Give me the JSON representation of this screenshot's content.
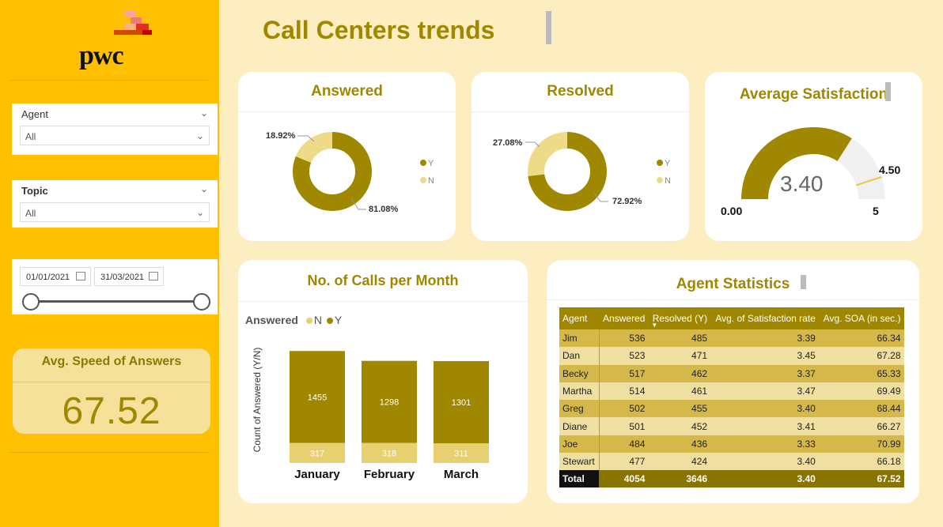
{
  "sidebar": {
    "logo_text": "pwc",
    "agent_slicer": {
      "label": "Agent",
      "value": "All"
    },
    "topic_slicer": {
      "label": "Topic",
      "value": "All"
    },
    "date_range": {
      "start": "01/01/2021",
      "end": "31/03/2021"
    },
    "kpi": {
      "label": "Avg. Speed of Answers",
      "value": "67.52"
    }
  },
  "header": {
    "title": "Call Centers trends"
  },
  "answered": {
    "title": "Answered",
    "chart_data": {
      "type": "pie",
      "categories": [
        "Y",
        "N"
      ],
      "values": [
        81.08,
        18.92
      ],
      "labels": [
        "81.08%",
        "18.92%"
      ],
      "legend": [
        "Y",
        "N"
      ]
    }
  },
  "resolved": {
    "title": "Resolved",
    "chart_data": {
      "type": "pie",
      "categories": [
        "Y",
        "N"
      ],
      "values": [
        72.92,
        27.08
      ],
      "labels": [
        "72.92%",
        "27.08%"
      ],
      "legend": [
        "Y",
        "N"
      ]
    }
  },
  "satisfaction": {
    "title": "Average Satisfaction",
    "value": "3.40",
    "min": "0.00",
    "max": "5",
    "target": "4.50",
    "gauge": {
      "value": 3.4,
      "min": 0,
      "max": 5,
      "target": 4.5
    }
  },
  "calls": {
    "title": "No. of Calls per Month",
    "legend_title": "Answered",
    "legend": [
      "N",
      "Y"
    ],
    "ylabel": "Count of Answered (Y/N)",
    "chart_data": {
      "type": "bar",
      "categories": [
        "January",
        "February",
        "March"
      ],
      "series": [
        {
          "name": "N",
          "values": [
            317,
            318,
            311
          ]
        },
        {
          "name": "Y",
          "values": [
            1455,
            1298,
            1301
          ]
        }
      ]
    }
  },
  "agent_stats": {
    "title": "Agent Statistics",
    "columns": [
      "Agent",
      "Answered",
      "Resolved (Y)",
      "Avg. of Satisfaction rate",
      "Avg. SOA (in sec.)"
    ],
    "rows": [
      [
        "Jim",
        "536",
        "485",
        "3.39",
        "66.34"
      ],
      [
        "Dan",
        "523",
        "471",
        "3.45",
        "67.28"
      ],
      [
        "Becky",
        "517",
        "462",
        "3.37",
        "65.33"
      ],
      [
        "Martha",
        "514",
        "461",
        "3.47",
        "69.49"
      ],
      [
        "Greg",
        "502",
        "455",
        "3.40",
        "68.44"
      ],
      [
        "Diane",
        "501",
        "452",
        "3.41",
        "66.27"
      ],
      [
        "Joe",
        "484",
        "436",
        "3.33",
        "70.99"
      ],
      [
        "Stewart",
        "477",
        "424",
        "3.40",
        "66.18"
      ]
    ],
    "total": [
      "Total",
      "4054",
      "3646",
      "3.40",
      "67.52"
    ]
  },
  "colors": {
    "accent": "#a08700",
    "light": "#eedb8a",
    "sidebar": "#fec000",
    "background": "#fdeec2"
  }
}
